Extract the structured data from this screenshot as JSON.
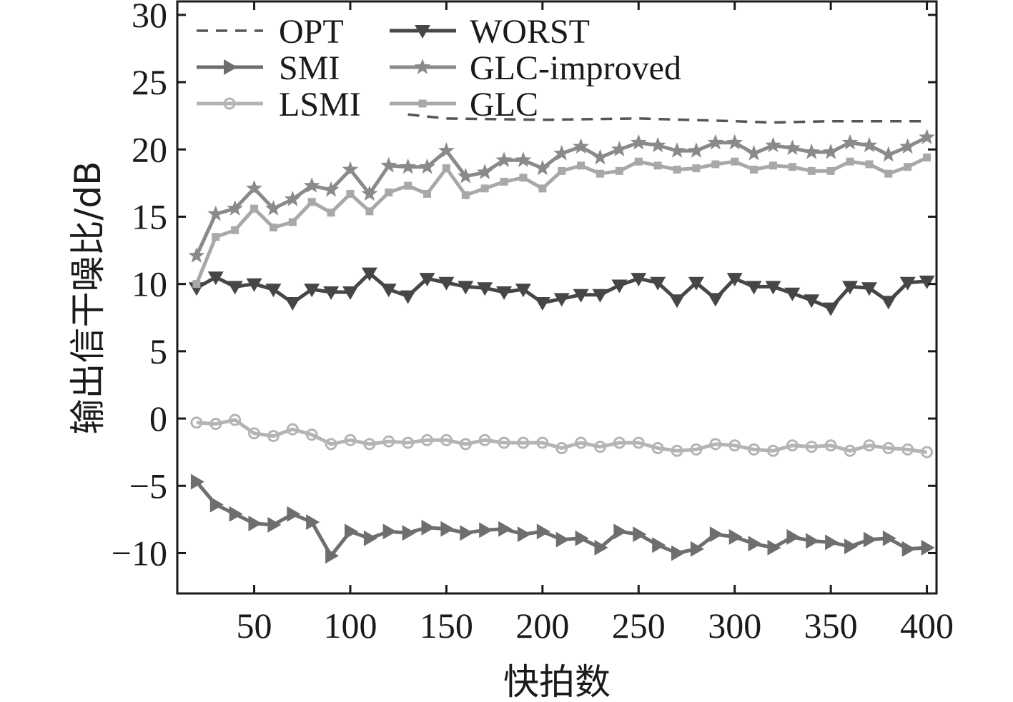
{
  "chart_data": {
    "type": "line",
    "title": "",
    "xlabel": "快拍数",
    "ylabel": "输出信干噪比/dB",
    "xlim": [
      10,
      405
    ],
    "ylim": [
      -13,
      31
    ],
    "xticks": [
      50,
      100,
      150,
      200,
      250,
      300,
      350,
      400
    ],
    "yticks": [
      -10,
      -5,
      0,
      5,
      10,
      15,
      20,
      25,
      30
    ],
    "ytick_labels": [
      "−10",
      "−5",
      "0",
      "5",
      "10",
      "15",
      "20",
      "25",
      "30"
    ],
    "grid": false,
    "legend_position": "top-left",
    "series": [
      {
        "name": "OPT",
        "color": "#555555",
        "style": "dashed",
        "marker": "none",
        "x": [
          130,
          150,
          200,
          250,
          300,
          320,
          350,
          400
        ],
        "values": [
          22.6,
          22.3,
          22.2,
          22.3,
          22.1,
          22.0,
          22.1,
          22.1
        ]
      },
      {
        "name": "SMI",
        "color": "#6e6e6e",
        "style": "solid",
        "marker": "triangle-right",
        "x": [
          20,
          30,
          40,
          50,
          60,
          70,
          80,
          90,
          100,
          110,
          120,
          130,
          140,
          150,
          160,
          170,
          180,
          190,
          200,
          210,
          220,
          230,
          240,
          250,
          260,
          270,
          280,
          290,
          300,
          310,
          320,
          330,
          340,
          350,
          360,
          370,
          380,
          390,
          400
        ],
        "values": [
          -4.7,
          -6.4,
          -7.1,
          -7.8,
          -7.9,
          -7.1,
          -7.7,
          -10.2,
          -8.4,
          -8.9,
          -8.4,
          -8.5,
          -8.1,
          -8.2,
          -8.5,
          -8.3,
          -8.2,
          -8.6,
          -8.4,
          -9.0,
          -8.9,
          -9.6,
          -8.4,
          -8.6,
          -9.4,
          -10.0,
          -9.7,
          -8.6,
          -8.8,
          -9.3,
          -9.6,
          -8.8,
          -9.1,
          -9.2,
          -9.5,
          -9.0,
          -8.9,
          -9.7,
          -9.6
        ]
      },
      {
        "name": "LSMI",
        "color": "#b4b4b4",
        "style": "solid",
        "marker": "circle",
        "x": [
          20,
          30,
          40,
          50,
          60,
          70,
          80,
          90,
          100,
          110,
          120,
          130,
          140,
          150,
          160,
          170,
          180,
          190,
          200,
          210,
          220,
          230,
          240,
          250,
          260,
          270,
          280,
          290,
          300,
          310,
          320,
          330,
          340,
          350,
          360,
          370,
          380,
          390,
          400
        ],
        "values": [
          -0.3,
          -0.4,
          -0.1,
          -1.1,
          -1.3,
          -0.8,
          -1.2,
          -1.9,
          -1.6,
          -1.9,
          -1.7,
          -1.8,
          -1.6,
          -1.6,
          -1.9,
          -1.6,
          -1.8,
          -1.8,
          -1.8,
          -2.2,
          -1.8,
          -2.1,
          -1.8,
          -1.8,
          -2.2,
          -2.4,
          -2.3,
          -1.9,
          -2.0,
          -2.3,
          -2.4,
          -2.0,
          -2.1,
          -2.0,
          -2.4,
          -2.0,
          -2.2,
          -2.3,
          -2.5
        ]
      },
      {
        "name": "WORST",
        "color": "#464646",
        "style": "solid",
        "marker": "triangle-down",
        "x": [
          20,
          30,
          40,
          50,
          60,
          70,
          80,
          90,
          100,
          110,
          120,
          130,
          140,
          150,
          160,
          170,
          180,
          190,
          200,
          210,
          220,
          230,
          240,
          250,
          260,
          270,
          280,
          290,
          300,
          310,
          320,
          330,
          340,
          350,
          360,
          370,
          380,
          390,
          400
        ],
        "values": [
          9.7,
          10.5,
          9.8,
          10.0,
          9.6,
          8.6,
          9.6,
          9.4,
          9.4,
          10.8,
          9.6,
          9.1,
          10.4,
          10.1,
          9.8,
          9.7,
          9.4,
          9.6,
          8.6,
          8.9,
          9.2,
          9.2,
          9.9,
          10.4,
          10.1,
          8.8,
          10.1,
          8.9,
          10.4,
          9.8,
          9.8,
          9.3,
          8.8,
          8.2,
          9.8,
          9.7,
          8.7,
          10.1,
          10.2
        ]
      },
      {
        "name": "GLC-improved",
        "color": "#8a8a8a",
        "style": "solid",
        "marker": "star",
        "x": [
          20,
          30,
          40,
          50,
          60,
          70,
          80,
          90,
          100,
          110,
          120,
          130,
          140,
          150,
          160,
          170,
          180,
          190,
          200,
          210,
          220,
          230,
          240,
          250,
          260,
          270,
          280,
          290,
          300,
          310,
          320,
          330,
          340,
          350,
          360,
          370,
          380,
          390,
          400
        ],
        "values": [
          12.1,
          15.2,
          15.6,
          17.1,
          15.6,
          16.3,
          17.3,
          17.0,
          18.5,
          16.7,
          18.8,
          18.7,
          18.7,
          19.9,
          18.0,
          18.3,
          19.2,
          19.2,
          18.6,
          19.7,
          20.2,
          19.4,
          20.0,
          20.5,
          20.3,
          19.9,
          19.9,
          20.5,
          20.5,
          19.7,
          20.3,
          20.1,
          19.8,
          19.8,
          20.5,
          20.3,
          19.6,
          20.2,
          20.9
        ]
      },
      {
        "name": "GLC",
        "color": "#a8a8a8",
        "style": "solid",
        "marker": "square",
        "x": [
          20,
          30,
          40,
          50,
          60,
          70,
          80,
          90,
          100,
          110,
          120,
          130,
          140,
          150,
          160,
          170,
          180,
          190,
          200,
          210,
          220,
          230,
          240,
          250,
          260,
          270,
          280,
          290,
          300,
          310,
          320,
          330,
          340,
          350,
          360,
          370,
          380,
          390,
          400
        ],
        "values": [
          10.0,
          13.5,
          14.0,
          15.6,
          14.2,
          14.6,
          16.1,
          15.3,
          16.7,
          15.4,
          16.8,
          17.3,
          16.7,
          18.6,
          16.6,
          17.1,
          17.6,
          17.9,
          17.1,
          18.4,
          18.8,
          18.2,
          18.4,
          19.1,
          18.8,
          18.5,
          18.6,
          18.9,
          19.1,
          18.5,
          18.8,
          18.7,
          18.4,
          18.4,
          19.1,
          18.9,
          18.2,
          18.7,
          19.4
        ]
      }
    ]
  }
}
